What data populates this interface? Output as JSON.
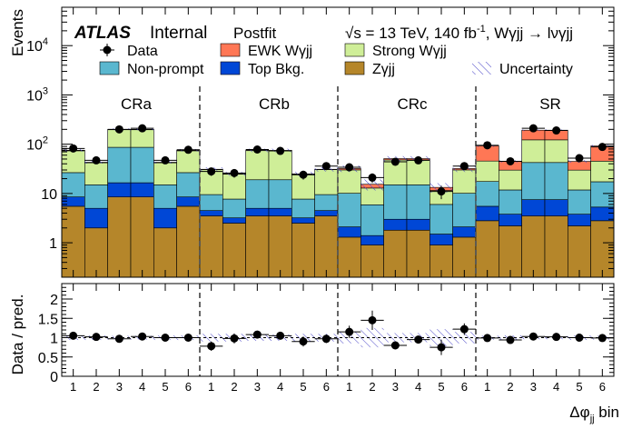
{
  "chart_data": {
    "type": "bar",
    "subtype": "stacked-histogram-with-ratio",
    "header": {
      "experiment": "ATLAS",
      "label": "Internal",
      "fit": "Postfit",
      "energy": "√s = 13 TeV, 140 fb",
      "energy_sup": "-1",
      "process": ", Wγjj → lνγjj"
    },
    "ylabel": "Events",
    "ratio_ylabel": "Data / pred.",
    "xlabel": "Δφ",
    "xlabel_sub": "jj",
    "xlabel_suffix": " bin",
    "yscale": "log",
    "ylim": [
      0.2,
      60000
    ],
    "yticks": [
      {
        "value": 1,
        "label": "1"
      },
      {
        "value": 10,
        "label": "10"
      },
      {
        "value": 100,
        "label": "10",
        "sup": "2"
      },
      {
        "value": 1000,
        "label": "10",
        "sup": "3"
      },
      {
        "value": 10000,
        "label": "10",
        "sup": "4"
      }
    ],
    "ratio_ylim": [
      0,
      2.4
    ],
    "ratio_yticks": [
      {
        "value": 0,
        "label": "0"
      },
      {
        "value": 0.5,
        "label": "0.5"
      },
      {
        "value": 1,
        "label": "1"
      },
      {
        "value": 1.5,
        "label": "1.5"
      },
      {
        "value": 2,
        "label": "2"
      }
    ],
    "regions": [
      "CRa",
      "CRb",
      "CRc",
      "SR"
    ],
    "bin_labels": [
      "1",
      "2",
      "3",
      "4",
      "5",
      "6",
      "1",
      "2",
      "3",
      "4",
      "5",
      "6",
      "1",
      "2",
      "3",
      "4",
      "5",
      "6",
      "1",
      "2",
      "3",
      "4",
      "5",
      "6"
    ],
    "series": [
      {
        "name": "Zγjj",
        "color": "#b5862a",
        "values": [
          5.5,
          2,
          8.5,
          8.5,
          2,
          5.5,
          3.5,
          2.5,
          3.5,
          3.5,
          2.5,
          3.5,
          1.3,
          0.9,
          1.8,
          1.8,
          0.9,
          1.3,
          2.8,
          2.2,
          3.5,
          3.5,
          2.2,
          2.8
        ]
      },
      {
        "name": "Top Bkg.",
        "color": "#0047d6",
        "values": [
          3,
          3,
          8,
          8,
          3,
          3,
          1,
          0.7,
          1.5,
          1.5,
          0.7,
          1,
          0.8,
          0.5,
          1.2,
          1.2,
          0.6,
          0.8,
          2.7,
          1.6,
          4,
          4,
          1.6,
          2.5
        ]
      },
      {
        "name": "Non-prompt",
        "color": "#5ab7cf",
        "values": [
          18,
          10,
          70,
          70,
          10,
          18,
          5,
          4.5,
          14,
          14,
          4.5,
          5,
          8,
          4.5,
          12,
          12,
          4.5,
          8,
          12,
          8,
          35,
          35,
          8,
          12
        ]
      },
      {
        "name": "Strong Wγjj",
        "color": "#cfee98",
        "values": [
          47,
          27,
          110,
          110,
          27,
          47,
          21,
          17,
          55,
          55,
          17,
          21,
          20,
          7,
          33,
          33,
          5.5,
          20,
          28,
          18,
          80,
          80,
          18,
          28
        ]
      },
      {
        "name": "EWK Wγjj",
        "color": "#ff7755",
        "values": [
          2,
          1,
          4,
          4,
          1,
          2,
          0.5,
          0.3,
          1,
          1,
          0.3,
          0.5,
          2,
          2.5,
          3,
          3,
          1.8,
          2,
          47,
          15,
          70,
          70,
          15,
          47
        ]
      }
    ],
    "data_values": [
      82,
      47,
      200,
      210,
      47,
      77,
      28,
      26,
      78,
      73,
      24,
      36,
      34,
      21,
      44,
      47,
      11,
      36,
      95,
      45,
      210,
      190,
      52,
      88
    ],
    "ratio_values": [
      1.05,
      1.02,
      0.97,
      1.03,
      1.0,
      1.0,
      0.78,
      0.98,
      1.08,
      1.05,
      0.9,
      0.97,
      1.15,
      1.45,
      0.8,
      0.95,
      0.75,
      1.22,
      0.99,
      0.94,
      1.03,
      1.02,
      1.0,
      0.99
    ],
    "ratio_errors": [
      0.08,
      0.09,
      0.05,
      0.05,
      0.09,
      0.08,
      0.12,
      0.13,
      0.08,
      0.08,
      0.13,
      0.11,
      0.16,
      0.25,
      0.1,
      0.1,
      0.2,
      0.15,
      0.07,
      0.1,
      0.05,
      0.05,
      0.09,
      0.07
    ],
    "uncertainty_halfwidth": [
      0.06,
      0.06,
      0.05,
      0.05,
      0.06,
      0.06,
      0.1,
      0.1,
      0.08,
      0.08,
      0.1,
      0.1,
      0.15,
      0.25,
      0.12,
      0.12,
      0.22,
      0.15,
      0.05,
      0.06,
      0.04,
      0.04,
      0.06,
      0.05
    ],
    "legend": [
      {
        "label": "Data",
        "type": "marker"
      },
      {
        "label": "EWK Wγjj",
        "type": "box",
        "color": "#ff7755"
      },
      {
        "label": "Strong Wγjj",
        "type": "box",
        "color": "#cfee98"
      },
      {
        "label": "Non-prompt",
        "type": "box",
        "color": "#5ab7cf"
      },
      {
        "label": "Top Bkg.",
        "type": "box",
        "color": "#0047d6"
      },
      {
        "label": "Zγjj",
        "type": "box",
        "color": "#b5862a"
      },
      {
        "label": "Uncertainty",
        "type": "hatch"
      }
    ]
  }
}
